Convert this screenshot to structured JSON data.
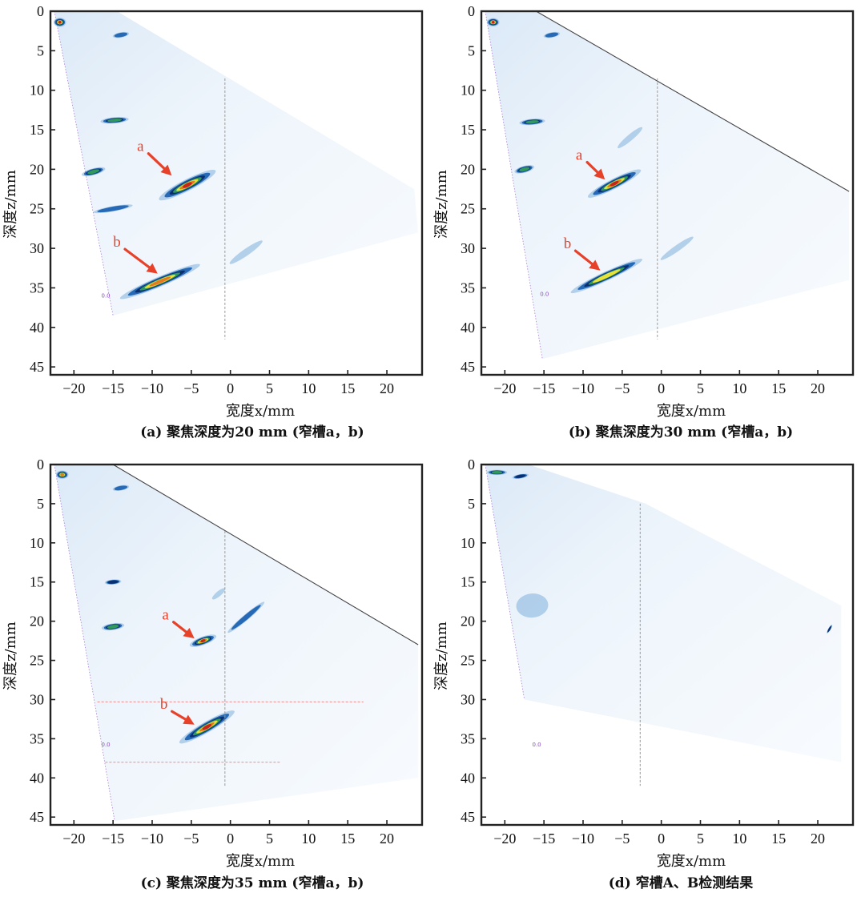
{
  "chart_data": [
    {
      "type": "heatmap",
      "caption": "(a) 聚焦深度为20 mm (窄槽a，b)",
      "xlabel": "宽度x/mm",
      "ylabel": "深度z/mm",
      "xlim": [
        -23,
        24.5
      ],
      "ylim": [
        0,
        46
      ],
      "xticks": [
        -20,
        -15,
        -10,
        -5,
        0,
        5,
        10,
        15,
        20
      ],
      "yticks": [
        0,
        5,
        10,
        15,
        20,
        25,
        30,
        35,
        40,
        45
      ],
      "sector": [
        [
          -22.5,
          0
        ],
        [
          -14.5,
          0
        ],
        [
          23.5,
          22.5
        ],
        [
          24.0,
          28.0
        ],
        [
          -15,
          38.5
        ]
      ],
      "show_edge_line": false,
      "center_line": {
        "x": -0.7,
        "z0": 8.5,
        "z1": 41.5
      },
      "probe_label": {
        "text": "0.0",
        "x": -16.5,
        "z": 36.2
      },
      "reflections": [
        {
          "x": -5.5,
          "z": 22.0,
          "len": 8.0,
          "w": 1.4,
          "angle": -27,
          "level": 1.0
        },
        {
          "x": -9.0,
          "z": 34.2,
          "len": 11.0,
          "w": 1.2,
          "angle": -23,
          "level": 0.85
        },
        {
          "x": -14.8,
          "z": 13.8,
          "len": 3.5,
          "w": 0.7,
          "angle": -5,
          "level": 0.7
        },
        {
          "x": -17.5,
          "z": 20.3,
          "len": 3.0,
          "w": 0.8,
          "angle": -15,
          "level": 0.65
        },
        {
          "x": -15.0,
          "z": 25.0,
          "len": 5.0,
          "w": 0.6,
          "angle": -10,
          "level": 0.4
        },
        {
          "x": -14.0,
          "z": 3.0,
          "len": 2.0,
          "w": 0.6,
          "angle": -10,
          "level": 0.5
        },
        {
          "x": 2.0,
          "z": 30.5,
          "len": 5.0,
          "w": 0.8,
          "angle": -35,
          "level": 0.2
        },
        {
          "x": -21.8,
          "z": 1.4,
          "len": 1.5,
          "w": 1.1,
          "angle": 0,
          "level": 0.9
        }
      ],
      "annotations": [
        {
          "label": "a",
          "text_x": -11.5,
          "text_z": 17.7,
          "tip_x": -7.5,
          "tip_z": 20.8
        },
        {
          "label": "b",
          "text_x": -14.5,
          "text_z": 29.8,
          "tip_x": -9.3,
          "tip_z": 33.2
        }
      ],
      "gate_lines": []
    },
    {
      "type": "heatmap",
      "caption": "(b) 聚焦深度为30 mm (窄槽a，b)",
      "xlabel": "宽度x/mm",
      "ylabel": "深度z/mm",
      "xlim": [
        -23,
        24.5
      ],
      "ylim": [
        0,
        46
      ],
      "xticks": [
        -20,
        -15,
        -10,
        -5,
        0,
        5,
        10,
        15,
        20
      ],
      "yticks": [
        0,
        5,
        10,
        15,
        20,
        25,
        30,
        35,
        40,
        45
      ],
      "sector": [
        [
          -22.5,
          0
        ],
        [
          -16.0,
          0
        ],
        [
          24.0,
          22.8
        ],
        [
          24.0,
          34.0
        ],
        [
          -15.2,
          44.0
        ]
      ],
      "show_edge_line": true,
      "center_line": {
        "x": -0.5,
        "z0": 8.5,
        "z1": 41.5
      },
      "probe_label": {
        "text": "0.0",
        "x": -15.5,
        "z": 36.0
      },
      "reflections": [
        {
          "x": -6.0,
          "z": 21.8,
          "len": 7.5,
          "w": 1.2,
          "angle": -27,
          "level": 0.95
        },
        {
          "x": -7.0,
          "z": 33.5,
          "len": 10.0,
          "w": 1.1,
          "angle": -25,
          "level": 0.8
        },
        {
          "x": -16.5,
          "z": 14.0,
          "len": 3.2,
          "w": 0.7,
          "angle": -5,
          "level": 0.7
        },
        {
          "x": -17.5,
          "z": 20.0,
          "len": 2.5,
          "w": 0.8,
          "angle": -15,
          "level": 0.7
        },
        {
          "x": -4.0,
          "z": 16.0,
          "len": 4.0,
          "w": 0.7,
          "angle": -40,
          "level": 0.25
        },
        {
          "x": -14.0,
          "z": 3.0,
          "len": 2.0,
          "w": 0.6,
          "angle": -10,
          "level": 0.5
        },
        {
          "x": 2.0,
          "z": 30.0,
          "len": 5.0,
          "w": 0.7,
          "angle": -35,
          "level": 0.2
        },
        {
          "x": -21.5,
          "z": 1.4,
          "len": 1.5,
          "w": 1.0,
          "angle": 0,
          "level": 0.9
        }
      ],
      "annotations": [
        {
          "label": "a",
          "text_x": -10.5,
          "text_z": 18.8,
          "tip_x": -7.2,
          "tip_z": 21.3
        },
        {
          "label": "b",
          "text_x": -12.0,
          "text_z": 30.0,
          "tip_x": -7.8,
          "tip_z": 32.8
        }
      ],
      "gate_lines": []
    },
    {
      "type": "heatmap",
      "caption": "(c) 聚焦深度为35 mm (窄槽a，b)",
      "xlabel": "宽度x/mm",
      "ylabel": "深度z/mm",
      "xlim": [
        -23,
        24.5
      ],
      "ylim": [
        0,
        46
      ],
      "xticks": [
        -20,
        -15,
        -10,
        -5,
        0,
        5,
        10,
        15,
        20
      ],
      "yticks": [
        0,
        5,
        10,
        15,
        20,
        25,
        30,
        35,
        40,
        45
      ],
      "sector": [
        [
          -22.5,
          0
        ],
        [
          -15.0,
          0
        ],
        [
          24.0,
          23.0
        ],
        [
          24.0,
          40.0
        ],
        [
          -14.8,
          45.5
        ]
      ],
      "show_edge_line": true,
      "center_line": {
        "x": -0.7,
        "z0": 8.5,
        "z1": 41.0
      },
      "probe_label": {
        "text": "0.0",
        "x": -16.5,
        "z": 36.0
      },
      "reflections": [
        {
          "x": -3.5,
          "z": 22.5,
          "len": 3.5,
          "w": 1.0,
          "angle": -20,
          "level": 0.9
        },
        {
          "x": -3.0,
          "z": 33.5,
          "len": 8.0,
          "w": 1.3,
          "angle": -30,
          "level": 0.9
        },
        {
          "x": -15.0,
          "z": 15.0,
          "len": 2.0,
          "w": 0.6,
          "angle": -5,
          "level": 0.55
        },
        {
          "x": -15.0,
          "z": 20.7,
          "len": 2.8,
          "w": 0.8,
          "angle": -8,
          "level": 0.7
        },
        {
          "x": 2.0,
          "z": 19.5,
          "len": 6.0,
          "w": 0.7,
          "angle": -40,
          "level": 0.35
        },
        {
          "x": -1.5,
          "z": 16.5,
          "len": 2.0,
          "w": 0.6,
          "angle": -40,
          "level": 0.3
        },
        {
          "x": -14.0,
          "z": 3.0,
          "len": 2.0,
          "w": 0.6,
          "angle": -10,
          "level": 0.5
        },
        {
          "x": -21.5,
          "z": 1.3,
          "len": 1.5,
          "w": 1.0,
          "angle": 0,
          "level": 0.85
        }
      ],
      "annotations": [
        {
          "label": "a",
          "text_x": -8.3,
          "text_z": 19.8,
          "tip_x": -4.6,
          "tip_z": 22.2
        },
        {
          "label": "b",
          "text_x": -8.5,
          "text_z": 31.2,
          "tip_x": -4.6,
          "tip_z": 33.2
        }
      ],
      "gate_lines": [
        {
          "z": 30.3,
          "x0": -17.0,
          "x1": 17.0
        },
        {
          "z": 38.0,
          "x0": -16.0,
          "x1": 6.5
        }
      ]
    },
    {
      "type": "heatmap",
      "caption": "(d) 窄槽A、B检测结果",
      "xlabel": "宽度x/mm",
      "ylabel": "深度z/mm",
      "xlim": [
        -23,
        24.5
      ],
      "ylim": [
        0,
        46
      ],
      "xticks": [
        -20,
        -15,
        -10,
        -5,
        0,
        5,
        10,
        15,
        20
      ],
      "yticks": [
        0,
        5,
        10,
        15,
        20,
        25,
        30,
        35,
        40,
        45
      ],
      "sector": [
        [
          -22.5,
          0
        ],
        [
          -17.0,
          0
        ],
        [
          -2.0,
          5.0
        ],
        [
          23.0,
          18.0
        ],
        [
          23.0,
          38.0
        ],
        [
          -17.5,
          30.0
        ]
      ],
      "show_edge_line": false,
      "center_line": {
        "x": -2.7,
        "z0": 5.0,
        "z1": 41.0
      },
      "probe_label": {
        "text": "0.0",
        "x": -16.5,
        "z": 36.0
      },
      "reflections": [
        {
          "x": -21.0,
          "z": 1.0,
          "len": 2.5,
          "w": 0.6,
          "angle": 0,
          "level": 0.7
        },
        {
          "x": -18.0,
          "z": 1.5,
          "len": 2.0,
          "w": 0.5,
          "angle": -10,
          "level": 0.55
        },
        {
          "x": -16.5,
          "z": 18.0,
          "len": 4.0,
          "w": 3.0,
          "angle": -5,
          "level": 0.25
        },
        {
          "x": 21.5,
          "z": 21.0,
          "len": 1.2,
          "w": 0.25,
          "angle": -60,
          "level": 0.6
        }
      ],
      "annotations": [],
      "gate_lines": []
    }
  ],
  "colors": {
    "frame": "#222222",
    "annotation": "#e8412a",
    "probe_label": "#8a4bc4",
    "center_line": "#9a9a9a",
    "gate_line": "#ee8b8b",
    "edge_line": "#444444",
    "sector_fill": "#f6f9fd"
  }
}
